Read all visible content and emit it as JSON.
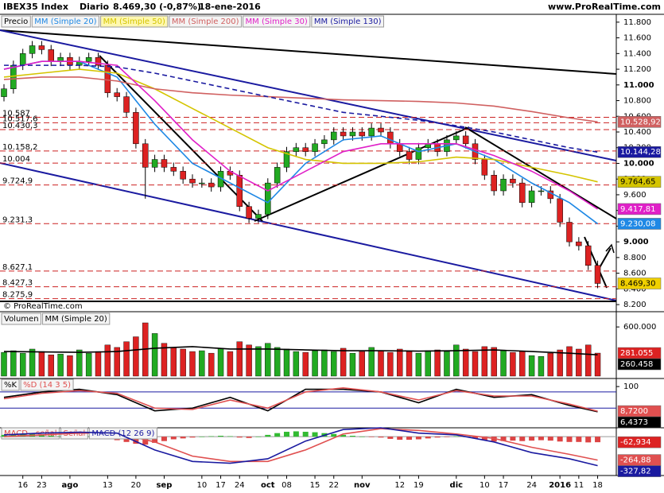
{
  "header": {
    "symbol": "IBEX35 Index",
    "period": "Diario",
    "quote": "8.469,30 (-0,87%)",
    "date": "18-ene-2016",
    "site": "www.ProRealTime.com",
    "copyright": "© ProRealTime.com"
  },
  "chart_data": [
    {
      "type": "candlestick",
      "categories": [
        null,
        null,
        "16",
        null,
        "23",
        null,
        null,
        "ago",
        null,
        null,
        null,
        "13",
        null,
        null,
        "20",
        null,
        null,
        "sep",
        null,
        null,
        null,
        "10",
        null,
        "17",
        null,
        "24",
        null,
        null,
        "oct",
        null,
        "08",
        null,
        null,
        "15",
        null,
        "22",
        null,
        null,
        "nov",
        null,
        null,
        null,
        "12",
        null,
        "19",
        null,
        null,
        null,
        "dic",
        null,
        null,
        "10",
        null,
        "17",
        null,
        null,
        "24",
        null,
        null,
        "2016",
        null,
        "11",
        null,
        "18"
      ],
      "candles": {
        "name": "Precio",
        "up_color": "#22aa22",
        "down_color": "#dd2222",
        "end_label": "8.469,30",
        "end_color": "#f0d000",
        "open": [
          10850,
          10950,
          11250,
          11400,
          11500,
          11450,
          11300,
          11350,
          11250,
          11300,
          11350,
          11250,
          10900,
          10850,
          10650,
          10250,
          9950,
          10050,
          9950,
          9900,
          9800,
          9750,
          9750,
          9700,
          9900,
          9850,
          9450,
          9300,
          9350,
          9750,
          9950,
          10150,
          10200,
          10150,
          10250,
          10300,
          10400,
          10350,
          10400,
          10350,
          10450,
          10400,
          10250,
          10150,
          10050,
          10200,
          10250,
          10150,
          10300,
          10350,
          10250,
          10050,
          9850,
          9650,
          9800,
          9750,
          9500,
          9650,
          9650,
          9550,
          9250,
          9000,
          8950,
          8700
        ],
        "high": [
          11010,
          11310,
          11460,
          11560,
          11560,
          11510,
          11410,
          11410,
          11360,
          11410,
          11410,
          11310,
          10960,
          10910,
          10710,
          10310,
          10110,
          10110,
          10010,
          9960,
          9860,
          9810,
          9810,
          9960,
          9960,
          9910,
          9510,
          9410,
          9810,
          10010,
          10210,
          10260,
          10260,
          10310,
          10360,
          10460,
          10460,
          10460,
          10460,
          10510,
          10510,
          10460,
          10310,
          10210,
          10260,
          10310,
          10310,
          10360,
          10410,
          10410,
          10310,
          10110,
          9910,
          9860,
          9860,
          9810,
          9710,
          9710,
          9710,
          9610,
          9310,
          9060,
          9010,
          8760
        ],
        "low": [
          10790,
          10890,
          11190,
          11340,
          11390,
          11240,
          11240,
          11190,
          11190,
          11240,
          11190,
          10840,
          10790,
          10590,
          10190,
          9550,
          9890,
          9890,
          9840,
          9740,
          9690,
          9690,
          9640,
          9640,
          9790,
          9390,
          9240,
          9240,
          9290,
          9690,
          9890,
          10090,
          10090,
          10090,
          10190,
          10240,
          10290,
          10290,
          10290,
          10290,
          10340,
          10190,
          10090,
          9990,
          9990,
          10140,
          10090,
          10090,
          10240,
          10190,
          9990,
          9790,
          9590,
          9590,
          9690,
          9440,
          9440,
          9590,
          9490,
          9190,
          8940,
          8890,
          8640,
          8409
        ],
        "close": [
          10950,
          11250,
          11400,
          11500,
          11450,
          11300,
          11350,
          11250,
          11300,
          11350,
          11250,
          10900,
          10850,
          10650,
          10250,
          9950,
          10050,
          9950,
          9900,
          9800,
          9750,
          9750,
          9700,
          9900,
          9850,
          9450,
          9300,
          9350,
          9750,
          9950,
          10150,
          10200,
          10150,
          10250,
          10300,
          10400,
          10350,
          10400,
          10350,
          10450,
          10400,
          10250,
          10150,
          10050,
          10200,
          10250,
          10150,
          10300,
          10350,
          10250,
          10050,
          9850,
          9650,
          9800,
          9750,
          9500,
          9650,
          9650,
          9550,
          9250,
          9000,
          8950,
          8700,
          8469.3
        ]
      },
      "series": [
        {
          "name": "MM (Simple 20)",
          "color": "#1e88e5",
          "x": [
            0,
            4,
            8,
            12,
            16,
            20,
            24,
            28,
            32,
            36,
            40,
            44,
            48,
            52,
            56,
            60,
            63
          ],
          "values": [
            11200,
            11300,
            11300,
            11100,
            10500,
            10000,
            9750,
            9500,
            10000,
            10300,
            10350,
            10150,
            10250,
            10050,
            9750,
            9500,
            9230.08
          ],
          "end_label": "9.230,08"
        },
        {
          "name": "MM (Simple 50)",
          "color": "#d4c400",
          "x": [
            0,
            4,
            8,
            12,
            16,
            20,
            24,
            28,
            32,
            36,
            40,
            44,
            48,
            52,
            56,
            60,
            63
          ],
          "values": [
            11100,
            11150,
            11200,
            11150,
            10950,
            10700,
            10450,
            10200,
            10050,
            10000,
            10000,
            10020,
            10080,
            10050,
            9950,
            9850,
            9764.65
          ],
          "end_label": "9.764,65"
        },
        {
          "name": "MM (Simple 200)",
          "color": "#d06060",
          "x": [
            0,
            4,
            8,
            12,
            16,
            20,
            24,
            28,
            32,
            36,
            40,
            44,
            48,
            52,
            56,
            60,
            63
          ],
          "values": [
            11070,
            11100,
            11100,
            11050,
            10950,
            10900,
            10870,
            10850,
            10830,
            10810,
            10800,
            10790,
            10770,
            10730,
            10660,
            10580,
            10528.92
          ],
          "end_label": "10.528,92"
        },
        {
          "name": "MM (Simple 30)",
          "color": "#e020c8",
          "x": [
            0,
            4,
            8,
            12,
            16,
            20,
            24,
            28,
            32,
            36,
            40,
            44,
            48,
            52,
            56,
            60,
            63
          ],
          "values": [
            11200,
            11300,
            11300,
            11250,
            10800,
            10300,
            9900,
            9650,
            9900,
            10150,
            10250,
            10250,
            10250,
            10100,
            9900,
            9650,
            9417.81
          ],
          "end_label": "9.417,81"
        },
        {
          "name": "MM (Simple 130)",
          "color": "#1a1aa0",
          "dashed": true,
          "x": [
            0,
            4,
            8,
            12,
            16,
            20,
            24,
            28,
            32,
            36,
            40,
            44,
            48,
            52,
            56,
            60,
            63
          ],
          "values": [
            11250,
            11250,
            11250,
            11230,
            11150,
            11050,
            10950,
            10850,
            10750,
            10650,
            10600,
            10550,
            10480,
            10400,
            10300,
            10200,
            10144.28
          ],
          "end_label": "10.144,28"
        }
      ],
      "levels": [
        {
          "value": 10587,
          "label": "10.587"
        },
        {
          "value": 10517.6,
          "label": "10.517,6"
        },
        {
          "value": 10430.3,
          "label": "10.430,3"
        },
        {
          "value": 10158.2,
          "label": "10.158,2"
        },
        {
          "value": 10004,
          "label": "10.004"
        },
        {
          "value": 9724.9,
          "label": "9.724,9"
        },
        {
          "value": 9231.3,
          "label": "9.231,3"
        },
        {
          "value": 8627.1,
          "label": "8.627,1"
        },
        {
          "value": 8427.3,
          "label": "8.427,3"
        },
        {
          "value": 8275.9,
          "label": "8.275,9"
        }
      ],
      "level_color": "#cc2222",
      "ylim": [
        8150,
        11900
      ],
      "yticks": [
        {
          "value": 8200,
          "label": "8.200"
        },
        {
          "value": 8400,
          "label": "8.400"
        },
        {
          "value": 8600,
          "label": "8.600"
        },
        {
          "value": 8800,
          "label": "8.800"
        },
        {
          "value": 9000,
          "label": "9.000"
        },
        {
          "value": 9200,
          "label": "9.200"
        },
        {
          "value": 9400,
          "label": "9.400"
        },
        {
          "value": 9600,
          "label": "9.600"
        },
        {
          "value": 9800,
          "label": "9.800"
        },
        {
          "value": 10000,
          "label": "10.000"
        },
        {
          "value": 10200,
          "label": "10.200"
        },
        {
          "value": 10400,
          "label": "10.400"
        },
        {
          "value": 10600,
          "label": "10.600"
        },
        {
          "value": 10800,
          "label": "10.800"
        },
        {
          "value": 11000,
          "label": "11.000"
        },
        {
          "value": 11200,
          "label": "11.200"
        },
        {
          "value": 11400,
          "label": "11.400"
        },
        {
          "value": 11600,
          "label": "11.600"
        },
        {
          "value": 11800,
          "label": "11.800"
        }
      ]
    },
    {
      "type": "volume",
      "bars": {
        "name": "Volumen",
        "end_label": "281.055",
        "end_color": "#dd2222",
        "values": [
          290000,
          310000,
          280000,
          330000,
          300000,
          260000,
          270000,
          250000,
          320000,
          280000,
          300000,
          380000,
          350000,
          420000,
          480000,
          650000,
          520000,
          400000,
          350000,
          330000,
          300000,
          310000,
          280000,
          340000,
          300000,
          420000,
          380000,
          360000,
          400000,
          350000,
          330000,
          300000,
          290000,
          310000,
          320000,
          300000,
          340000,
          280000,
          300000,
          350000,
          310000,
          290000,
          330000,
          300000,
          280000,
          310000,
          320000,
          300000,
          380000,
          330000,
          300000,
          360000,
          350000,
          310000,
          290000,
          300000,
          250000,
          240000,
          280000,
          320000,
          360000,
          330000,
          380000,
          281055
        ]
      },
      "series": [
        {
          "name": "MM (Simple 20)",
          "color": "#000000",
          "x": [
            0,
            4,
            8,
            12,
            16,
            20,
            24,
            28,
            32,
            36,
            40,
            44,
            48,
            52,
            56,
            60,
            63
          ],
          "values": [
            300000,
            295000,
            290000,
            300000,
            340000,
            360000,
            330000,
            330000,
            320000,
            310000,
            310000,
            305000,
            310000,
            320000,
            300000,
            280000,
            260458
          ],
          "end_label": "260.458"
        }
      ],
      "ylim": [
        0,
        650000
      ],
      "yticks": [
        {
          "value": 600000,
          "label": "600.000"
        }
      ]
    },
    {
      "type": "line",
      "series": [
        {
          "name": "%K",
          "color": "#000000",
          "x": [
            0,
            4,
            8,
            12,
            16,
            20,
            24,
            28,
            32,
            36,
            40,
            44,
            48,
            52,
            56,
            60,
            63
          ],
          "values": [
            60,
            80,
            90,
            70,
            10,
            20,
            60,
            10,
            90,
            90,
            80,
            40,
            90,
            60,
            70,
            30,
            6.4373
          ],
          "end_label": "6,4373"
        },
        {
          "name": "%D (14 3 5)",
          "color": "#e05050",
          "x": [
            0,
            4,
            8,
            12,
            16,
            20,
            24,
            28,
            32,
            36,
            40,
            44,
            48,
            52,
            56,
            60,
            63
          ],
          "values": [
            55,
            75,
            85,
            75,
            20,
            15,
            50,
            20,
            80,
            95,
            80,
            50,
            85,
            65,
            65,
            35,
            8.72
          ],
          "end_label": "8,7200"
        }
      ],
      "levels": [
        80,
        20
      ],
      "level_color": "#1a1aa0",
      "ylim": [
        -50,
        124
      ],
      "yticks": [
        100
      ]
    },
    {
      "type": "macd",
      "bars": {
        "name": "MACD-, señal",
        "pos_color": "#33bb33",
        "neg_color": "#dd4444",
        "end_label": "-62,934",
        "end_color": "#dd2222",
        "values": [
          20,
          25,
          30,
          30,
          20,
          10,
          5,
          0,
          5,
          5,
          0,
          -20,
          -40,
          -60,
          -80,
          -90,
          -70,
          -50,
          -30,
          -20,
          -10,
          0,
          5,
          10,
          5,
          -10,
          -15,
          0,
          20,
          40,
          55,
          60,
          55,
          50,
          40,
          30,
          20,
          10,
          0,
          -5,
          -10,
          -25,
          -35,
          -35,
          -30,
          -20,
          -10,
          -5,
          5,
          0,
          -20,
          -40,
          -55,
          -50,
          -45,
          -50,
          -45,
          -40,
          -45,
          -55,
          -60,
          -60,
          -65,
          -62.934
        ]
      },
      "series": [
        {
          "name": "Señal",
          "color": "#e05050",
          "x": [
            0,
            4,
            8,
            12,
            16,
            20,
            24,
            28,
            32,
            36,
            40,
            44,
            48,
            52,
            56,
            60,
            63
          ],
          "values": [
            0,
            20,
            40,
            40,
            -60,
            -220,
            -280,
            -280,
            -150,
            30,
            90,
            70,
            30,
            -20,
            -120,
            -200,
            -264.88
          ],
          "end_label": "-264,88"
        },
        {
          "name": "MACD (12 26 9)",
          "color": "#1a1aa0",
          "x": [
            0,
            4,
            8,
            12,
            16,
            20,
            24,
            28,
            32,
            36,
            40,
            44,
            48,
            52,
            56,
            60,
            63
          ],
          "values": [
            20,
            40,
            50,
            40,
            -150,
            -280,
            -300,
            -250,
            -50,
            80,
            100,
            40,
            20,
            -60,
            -180,
            -250,
            -327.82
          ],
          "end_label": "-327,82"
        }
      ],
      "ylim": [
        -430,
        100
      ],
      "yticks": []
    }
  ]
}
